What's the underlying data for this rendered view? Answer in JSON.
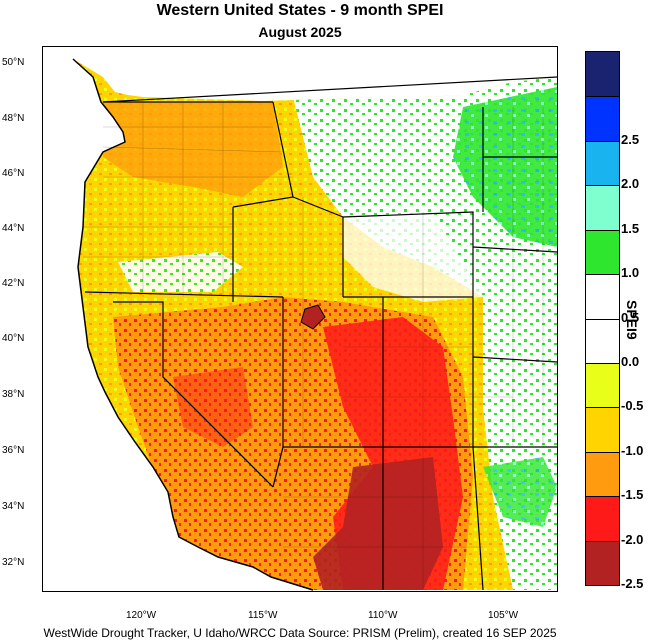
{
  "title": "Western United States - 9 month SPEI",
  "subtitle": "August 2025",
  "footer": "WestWide Drought Tracker, U Idaho/WRCC Data Source: PRISM (Prelim), created 16 SEP 2025",
  "legend_title": "SPEI9",
  "lat_labels": [
    "50°N",
    "48°N",
    "46°N",
    "44°N",
    "42°N",
    "40°N",
    "38°N",
    "36°N",
    "34°N",
    "32°N"
  ],
  "lon_labels": [
    "120°W",
    "115°W",
    "110°W",
    "105°W"
  ],
  "legend": {
    "bins": [
      {
        "color": "#1a2370",
        "label": ""
      },
      {
        "color": "#0033ff",
        "label": "2.5"
      },
      {
        "color": "#19b4f0",
        "label": "2.0"
      },
      {
        "color": "#7fffcf",
        "label": "1.5"
      },
      {
        "color": "#2ee62e",
        "label": "1.0"
      },
      {
        "color": "#ffffff",
        "label": "0.5"
      },
      {
        "color": "#ffffff",
        "label": "0.0"
      },
      {
        "color": "#e8ff1a",
        "label": "-0.5"
      },
      {
        "color": "#ffd400",
        "label": "-1.0"
      },
      {
        "color": "#ff9b0f",
        "label": "-1.5"
      },
      {
        "color": "#ff1a1a",
        "label": "-2.0"
      },
      {
        "color": "#b32222",
        "label": "-2.5"
      }
    ]
  },
  "colors": {
    "dry_severe": "#b32222",
    "dry_extreme": "#ff1a1a",
    "dry_severe2": "#ff9b0f",
    "dry_moderate": "#ffd400",
    "dry_mild": "#e8ff1a",
    "normal": "#ffffff",
    "wet_mild": "#2ee62e",
    "wet_moderate": "#7fffcf",
    "wet_severe": "#19b4f0"
  }
}
